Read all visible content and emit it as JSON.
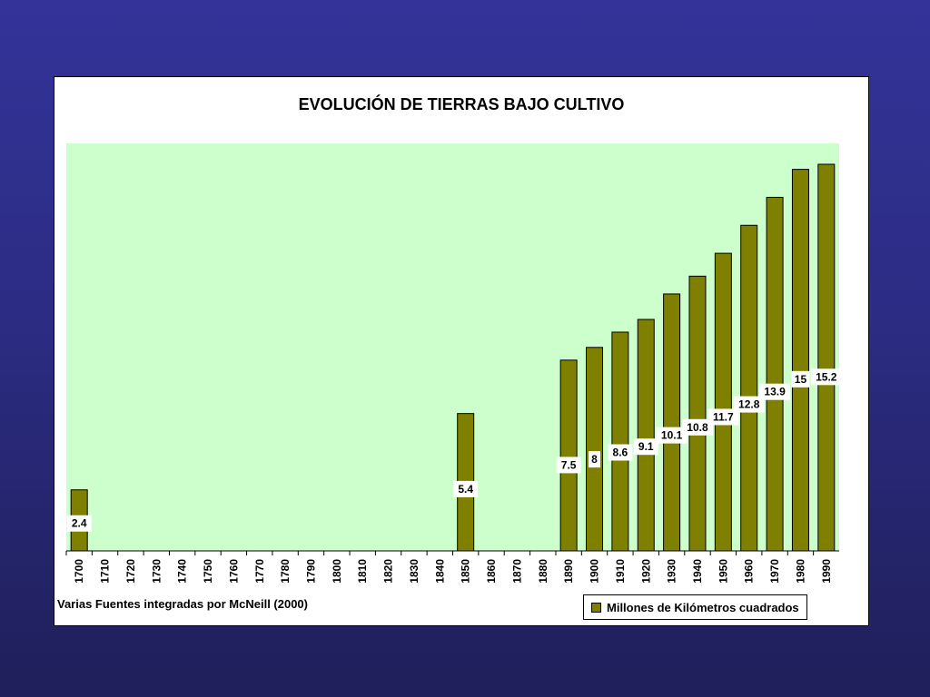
{
  "chart_data": {
    "type": "bar",
    "title": "EVOLUCIÓN DE TIERRAS BAJO CULTIVO",
    "source_note": "Varias Fuentes integradas por McNeill (2000)",
    "categories": [
      "1700",
      "1710",
      "1720",
      "1730",
      "1740",
      "1750",
      "1760",
      "1770",
      "1780",
      "1790",
      "1800",
      "1810",
      "1820",
      "1830",
      "1840",
      "1850",
      "1860",
      "1870",
      "1880",
      "1890",
      "1900",
      "1910",
      "1920",
      "1930",
      "1940",
      "1950",
      "1960",
      "1970",
      "1980",
      "1990"
    ],
    "series": [
      {
        "name": "Millones de Kilómetros cuadrados",
        "values": [
          2.4,
          null,
          null,
          null,
          null,
          null,
          null,
          null,
          null,
          null,
          null,
          null,
          null,
          null,
          null,
          5.4,
          null,
          null,
          null,
          7.5,
          8,
          8.6,
          9.1,
          10.1,
          10.8,
          11.7,
          12.8,
          13.9,
          15,
          15.2
        ],
        "color": "#808000"
      }
    ],
    "ylim": [
      0,
      15.2
    ],
    "plot_background": "#ccffcc",
    "legend_position": "bottom-right",
    "grid": false
  }
}
